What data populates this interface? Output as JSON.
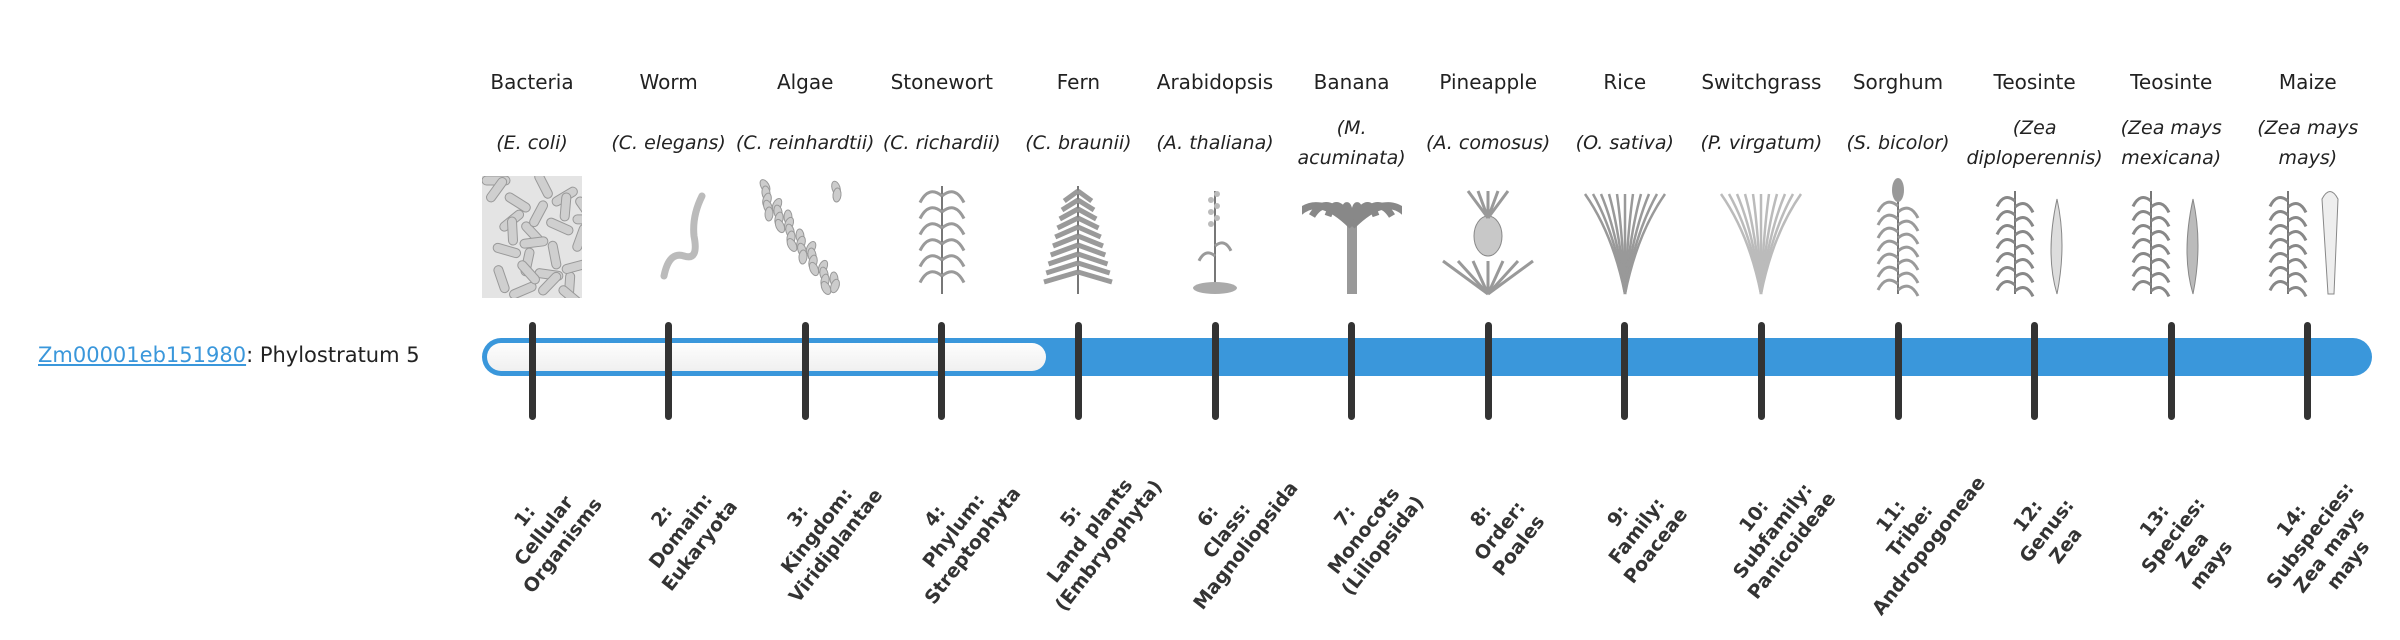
{
  "gene": {
    "id": "Zm00001eb151980",
    "suffix": ": Phylostratum 5",
    "phylostratum": 5
  },
  "colors": {
    "accent": "#3a97db",
    "tick": "#333333",
    "empty": "#f3f3f3"
  },
  "taxa": [
    {
      "common": "Bacteria",
      "species": "(E. coli)",
      "illustration": "bacteria-rods",
      "stratum": "1:\nCellular\nOrganisms"
    },
    {
      "common": "Worm",
      "species": "(C. elegans)",
      "illustration": "worm",
      "stratum": "2:\nDomain:\nEukaryota"
    },
    {
      "common": "Algae",
      "species": "(C. reinhardtii)",
      "illustration": "algae-cells",
      "stratum": "3:\nKingdom:\nViridiplantae"
    },
    {
      "common": "Stonewort",
      "species": "(C. richardii)",
      "illustration": "stonewort",
      "stratum": "4:\nPhylum:\nStreptophyta"
    },
    {
      "common": "Fern",
      "species": "(C. braunii)",
      "illustration": "fern",
      "stratum": "5:\nLand plants\n(Embryophyta)"
    },
    {
      "common": "Arabidopsis",
      "species": "(A. thaliana)",
      "illustration": "arabidopsis",
      "stratum": "6:\nClass:\nMagnoliopsida"
    },
    {
      "common": "Banana",
      "species": "(M. acuminata)",
      "illustration": "banana",
      "stratum": "7:\nMonocots\n(Liliopsida)"
    },
    {
      "common": "Pineapple",
      "species": "(A. comosus)",
      "illustration": "pineapple",
      "stratum": "8:\nOrder:\nPoales"
    },
    {
      "common": "Rice",
      "species": "(O. sativa)",
      "illustration": "rice",
      "stratum": "9:\nFamily:\nPoaceae"
    },
    {
      "common": "Switchgrass",
      "species": "(P. virgatum)",
      "illustration": "switchgrass",
      "stratum": "10:\nSubfamily:\nPanicoideae"
    },
    {
      "common": "Sorghum",
      "species": "(S. bicolor)",
      "illustration": "sorghum",
      "stratum": "11:\nTribe:\nAndropogoneae"
    },
    {
      "common": "Teosinte",
      "species": "(Zea diploperennis)",
      "illustration": "teosinte-perennial",
      "stratum": "12:\nGenus:\nZea"
    },
    {
      "common": "Teosinte",
      "species": "(Zea mays mexicana)",
      "illustration": "teosinte-mexicana",
      "stratum": "13:\nSpecies:\nZea\nmays"
    },
    {
      "common": "Maize",
      "species": "(Zea mays mays)",
      "illustration": "maize",
      "stratum": "14:\nSubspecies:\nZea mays\nmays"
    }
  ]
}
